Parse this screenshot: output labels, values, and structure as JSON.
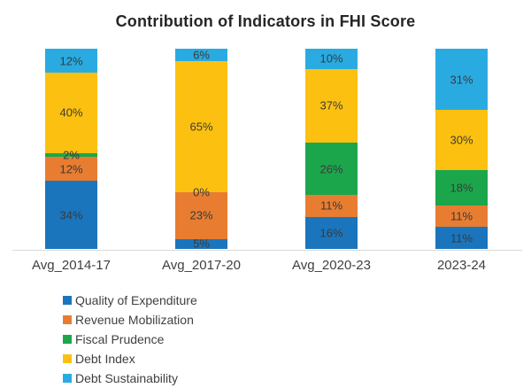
{
  "chart_data": {
    "type": "bar",
    "subtype": "stacked-percent",
    "title": "Contribution of Indicators in FHI Score",
    "categories": [
      "Avg_2014-17",
      "Avg_2017-20",
      "Avg_2020-23",
      "2023-24"
    ],
    "series": [
      {
        "name": "Quality of Expenditure",
        "color": "#1b75bc",
        "values": [
          34,
          5,
          16,
          11
        ]
      },
      {
        "name": "Revenue Mobilization",
        "color": "#e87d31",
        "values": [
          12,
          23,
          11,
          11
        ]
      },
      {
        "name": "Fiscal Prudence",
        "color": "#1ca64c",
        "values": [
          2,
          0,
          26,
          18
        ]
      },
      {
        "name": "Debt Index",
        "color": "#fcc110",
        "values": [
          40,
          65,
          37,
          30
        ]
      },
      {
        "name": "Debt Sustainability",
        "color": "#29abe2",
        "values": [
          12,
          6,
          10,
          31
        ]
      }
    ],
    "data_label_format": "percent",
    "data_labels_visible": true,
    "stack_order_bottom_to_top": [
      "Quality of Expenditure",
      "Revenue Mobilization",
      "Fiscal Prudence",
      "Debt Index",
      "Debt Sustainability"
    ],
    "xlabel": "",
    "ylabel": "",
    "axis_visible": false,
    "gridlines": false,
    "baseline_color": "#d9d9d9",
    "legend_position": "bottom",
    "text_colors": {
      "title": "#262626",
      "data_label": "#3a3a3a",
      "axis_label": "#404040",
      "legend_label": "#404040"
    }
  }
}
